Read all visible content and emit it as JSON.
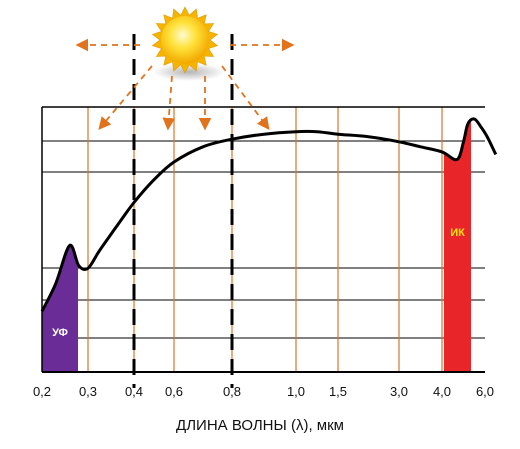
{
  "chart_data": {
    "type": "area",
    "xlabel": "ДЛИНА ВОЛНЫ (λ), мкм",
    "ylabel": "",
    "x_ticks": [
      "0,2",
      "0,3",
      "0,4",
      "0,6",
      "0,8",
      "1,0",
      "1,5",
      "3,0",
      "4,0",
      "6,0"
    ],
    "visible_band_edges": [
      "0,4",
      "0,8"
    ],
    "grid": true,
    "bands": [
      {
        "label": "УФ",
        "from": "0,2",
        "to": "0,3",
        "color": "#6a2d98",
        "label_color": "#ffffff"
      },
      {
        "label": "ИК",
        "from": "4,0",
        "to": "6,0",
        "color": "#e8262a",
        "label_color": "#ffe600"
      }
    ],
    "curve": {
      "color": "#000000",
      "y_range": [
        0,
        1
      ],
      "points": [
        [
          0.0,
          0.24
        ],
        [
          0.3,
          0.35
        ],
        [
          0.6,
          0.5
        ],
        [
          0.8,
          0.42
        ],
        [
          1.0,
          0.41
        ],
        [
          1.25,
          0.48
        ],
        [
          1.6,
          0.57
        ],
        [
          2.0,
          0.67
        ],
        [
          2.5,
          0.76
        ],
        [
          3.0,
          0.83
        ],
        [
          3.5,
          0.89
        ],
        [
          4.0,
          0.92
        ],
        [
          4.5,
          0.94
        ],
        [
          5.0,
          0.95
        ],
        [
          5.5,
          0.95
        ],
        [
          6.0,
          0.94
        ],
        [
          6.5,
          0.93
        ],
        [
          7.0,
          0.91
        ],
        [
          7.5,
          0.89
        ],
        [
          8.0,
          0.87
        ],
        [
          8.35,
          0.84
        ],
        [
          8.5,
          0.91
        ],
        [
          8.6,
          0.98
        ],
        [
          8.75,
          1.0
        ],
        [
          8.9,
          0.97
        ],
        [
          9.05,
          0.93
        ],
        [
          9.25,
          0.86
        ]
      ]
    },
    "sun": {
      "color": "#f7c600",
      "arrow_color": "#e0731c"
    },
    "colors": {
      "grid_orange": "#d9762b",
      "grid_black": "#000000",
      "dashed": "#000000"
    }
  }
}
